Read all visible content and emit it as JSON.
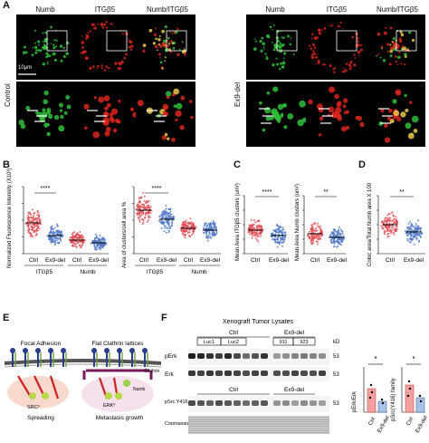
{
  "panelA": {
    "label": "A",
    "headers_left": [
      "Numb",
      "ITGβ5",
      "Numb/ITGβ5"
    ],
    "headers_right": [
      "Numb",
      "ITGβ5",
      "Numb/ITGβ5"
    ],
    "row_label_left": "Control",
    "row_label_right": "Ex9-del",
    "scalebar": "10μm",
    "colors": {
      "green": "#2fbf3a",
      "red": "#d8261c",
      "merge": "#c8a23a",
      "bg": "#000000"
    }
  },
  "panelB": {
    "label": "B",
    "ylabel1": "Normalized Fluorescence Intensity (X10³)",
    "ylabel2": "Area of clusters/cell area %",
    "sig": "****",
    "groups": [
      "ITGβ5",
      "Numb"
    ],
    "xticks": [
      "Ctrl",
      "Ex9-del",
      "Ctrl",
      "Ex9-del"
    ]
  },
  "panelC": {
    "label": "C",
    "ylabel1": "Mean Area ITGβ5 clusters (um²)",
    "ylabel2": "Mean Area Numb clusters (um²)",
    "sig1": "****",
    "sig2": "**",
    "xticks": [
      "Ctrl",
      "Ex9-del"
    ]
  },
  "panelD": {
    "label": "D",
    "ylabel": "Coloc area/Total Numb area X 100",
    "sig": "**",
    "xticks": [
      "Ctrl",
      "Ex9-del"
    ]
  },
  "panelE": {
    "label": "E",
    "title_left": "Focal Adhesion",
    "title_right": "Flat Clathrin lattices",
    "src": "SRC⁰",
    "erk": "ERK⁰",
    "clathrin": "Clathrin",
    "numb": "Numb",
    "caption_left": "Spreading",
    "caption_right": "Metastasis growth"
  },
  "panelF": {
    "label": "F",
    "title": "Xenograft Tumor Lysates",
    "ctrl": "Ctrl",
    "ex9": "Ex9-del",
    "lanes": [
      "Luc1",
      "Luc2",
      "911",
      "923"
    ],
    "kd": "kD",
    "rows": [
      "pErk",
      "Erk",
      "pSrc Y416 family",
      "Coomassie"
    ],
    "mw": [
      "53",
      "53",
      "53"
    ],
    "bar1_ylabel": "pErk/Erk",
    "bar2_ylabel": "pSrc(Y416) family",
    "bar_sig": "*",
    "bar_xticks": [
      "Ctrl",
      "Ex9-del"
    ]
  }
}
